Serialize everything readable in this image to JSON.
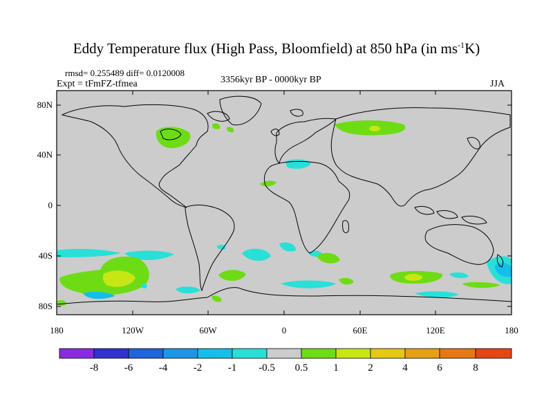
{
  "title": {
    "main": "Eddy Temperature flux (High Pass, Bloomfield) at 850 hPa (in ms",
    "sup": "-1",
    "end": "K)"
  },
  "stats": "rmsd= 0.255489 diff= 0.0120008",
  "experiment": "Expt = tFmFZ-tfmea",
  "period": "3356kyr BP - 0000kyr BP",
  "season": "JJA",
  "map": {
    "lat_labels": [
      "80N",
      "40N",
      "0",
      "40S",
      "80S"
    ],
    "lon_labels": [
      "180",
      "120W",
      "60W",
      "0",
      "60E",
      "120E",
      "180"
    ],
    "ocean_color": "#cccccc",
    "land_outline_color": "#000000"
  },
  "colorbar": {
    "labels": [
      "-8",
      "-6",
      "-4",
      "-2",
      "-1",
      "-0.5",
      "0.5",
      "1",
      "2",
      "4",
      "6",
      "8"
    ],
    "colors": [
      "#8a2be2",
      "#3232d2",
      "#1e64dc",
      "#1e96e6",
      "#14beea",
      "#28e0d8",
      "#cccccc",
      "#6edc14",
      "#c8e614",
      "#e6c814",
      "#e6a014",
      "#e67814",
      "#e64614"
    ]
  },
  "anomalies": [
    {
      "label": "Hudson Bay positive",
      "value": "1"
    },
    {
      "label": "Siberia positive",
      "value": "1-2"
    },
    {
      "label": "Mediterranean negative",
      "value": "-1"
    },
    {
      "label": "South Pacific positive",
      "value": "1-2"
    },
    {
      "label": "Southern Ocean Indian positive",
      "value": "1-2"
    },
    {
      "label": "Southern Ocean negative",
      "value": "-1"
    }
  ]
}
